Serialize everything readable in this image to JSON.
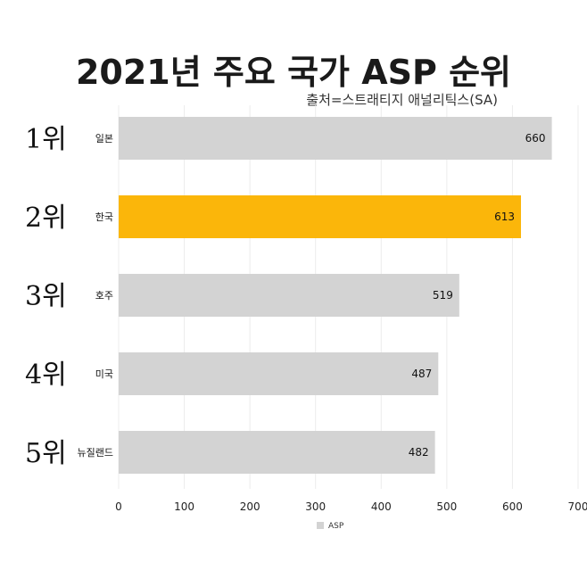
{
  "title": "2021년 주요 국가 ASP 순위",
  "subtitle": "출처=스트래티지 애널리틱스(SA)",
  "chart_data": {
    "type": "bar",
    "orientation": "horizontal",
    "title": "2021년 주요 국가 ASP 순위",
    "subtitle": "출처=스트래티지 애널리틱스(SA)",
    "ranks": [
      "1위",
      "2위",
      "3위",
      "4위",
      "5위"
    ],
    "categories": [
      "일본",
      "한국",
      "호주",
      "미국",
      "뉴질랜드"
    ],
    "values": [
      660,
      613,
      519,
      487,
      482
    ],
    "highlight_index": 1,
    "colors": {
      "bar": "#d3d3d3",
      "highlight": "#fbb60a",
      "grid": "#ececec"
    },
    "xlim": [
      0,
      700
    ],
    "xticks": [
      0,
      100,
      200,
      300,
      400,
      500,
      600,
      700
    ],
    "legend": {
      "label": "ASP",
      "position": "bottom-center"
    },
    "grid": true
  }
}
